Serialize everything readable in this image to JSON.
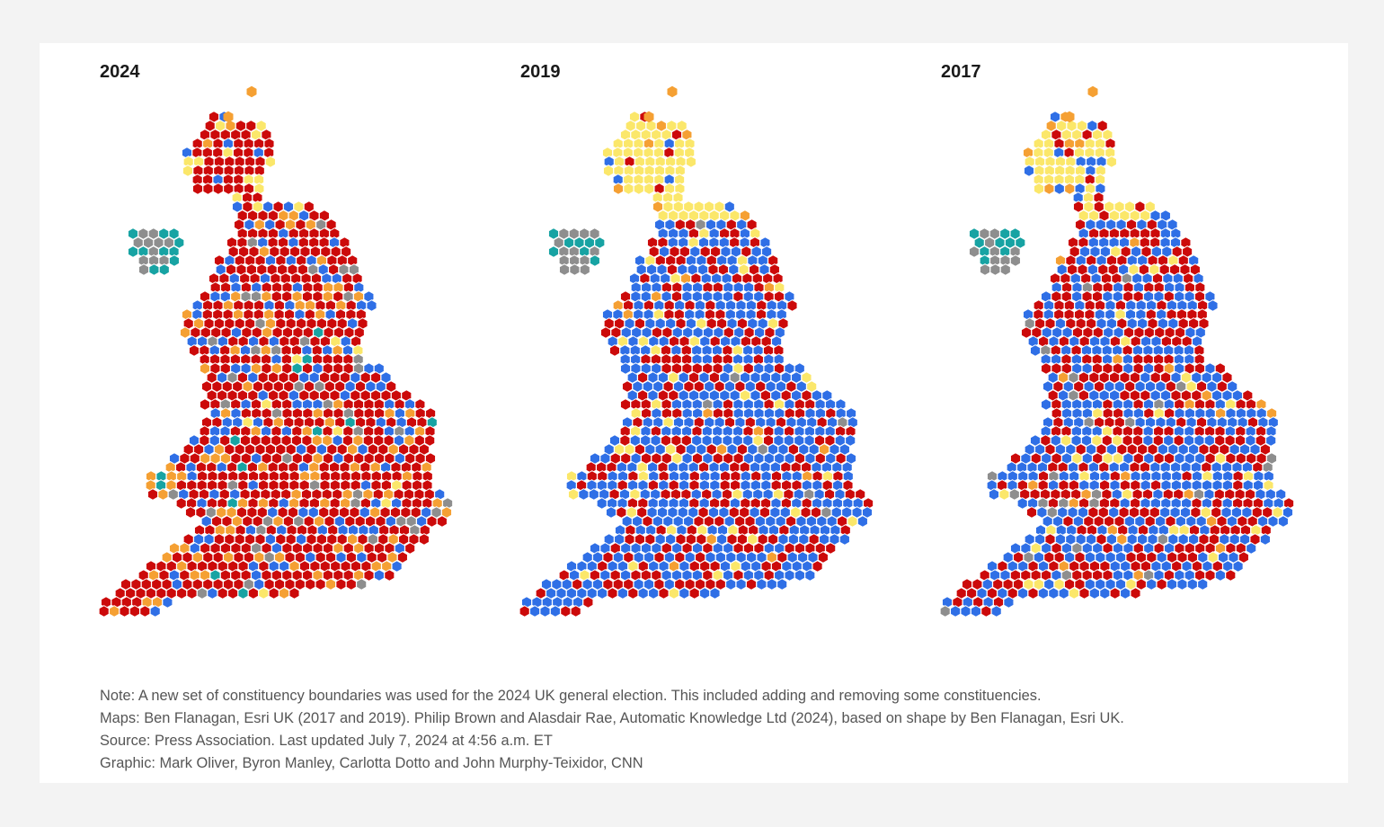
{
  "maps": [
    {
      "year": "2024",
      "mix": {
        "Labour": 0.63,
        "Conservative": 0.19,
        "Liberal Democrat": 0.11,
        "SNP": 0.01,
        "Other": 0.04,
        "Green/PC": 0.02
      },
      "scotland_mix": {
        "Labour": 0.65,
        "SNP": 0.16,
        "Liberal Democrat": 0.12,
        "Conservative": 0.07
      }
    },
    {
      "year": "2019",
      "mix": {
        "Labour": 0.32,
        "Conservative": 0.58,
        "Liberal Democrat": 0.02,
        "SNP": 0.07,
        "Other": 0.01
      },
      "scotland_mix": {
        "SNP": 0.8,
        "Conservative": 0.1,
        "Liberal Democrat": 0.06,
        "Labour": 0.04
      }
    },
    {
      "year": "2017",
      "mix": {
        "Labour": 0.41,
        "Conservative": 0.49,
        "Liberal Democrat": 0.02,
        "SNP": 0.05,
        "Other": 0.03
      },
      "scotland_mix": {
        "SNP": 0.59,
        "Conservative": 0.22,
        "Labour": 0.12,
        "Liberal Democrat": 0.07
      }
    }
  ],
  "party_colors": {
    "Labour": "#cc0a0a",
    "Conservative": "#2f6fe6",
    "Liberal Democrat": "#f5a033",
    "SNP": "#fbe76a",
    "Other": "#8e8e8e",
    "Green/PC": "#17a3a3"
  },
  "notes": [
    "Note: A new set of constituency boundaries was used for the 2024 UK general election. This included adding and removing some constituencies.",
    "Maps: Ben Flanagan, Esri UK (2017 and 2019). Philip Brown and Alasdair Rae, Automatic Knowledge Ltd (2024), based on shape by Ben Flanagan, Esri UK.",
    "Source: Press Association. Last updated July 7, 2024 at 4:56 a.m. ET",
    "Graphic: Mark Oliver, Byron Manley, Carlotta Dotto and John Murphy-Teixidor, CNN"
  ]
}
